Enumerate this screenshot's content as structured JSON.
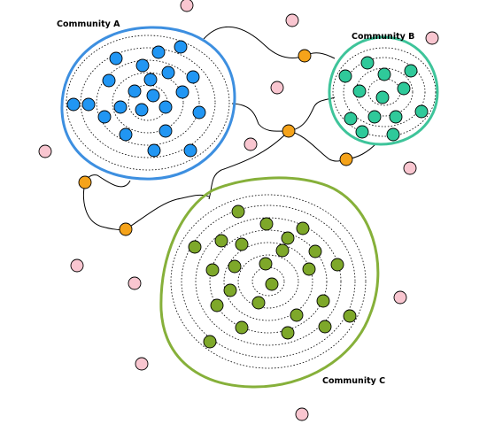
{
  "labels": {
    "a": "Community A",
    "b": "Community B",
    "c": "Community C"
  },
  "colors": {
    "community_a_border": "#3d8fe0",
    "community_a_node": "#2196f3",
    "community_b_border": "#3ec49a",
    "community_b_node": "#2fc99a",
    "community_c_border": "#86b03a",
    "community_c_node": "#7ea82a",
    "bridge_node": "#f5a31a",
    "isolated_node": "#f9c6d0",
    "edge": "#000000"
  },
  "counts": {
    "community_a_nodes": 25,
    "community_b_nodes": 16,
    "community_c_nodes": 30,
    "bridge_nodes": 5,
    "isolated_nodes": 14
  }
}
